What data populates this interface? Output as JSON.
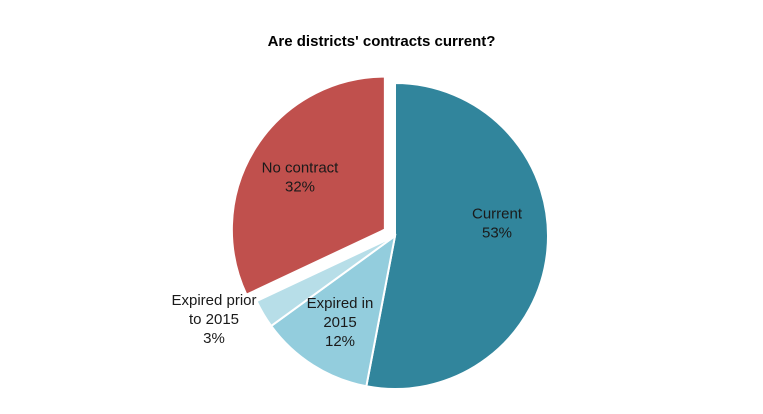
{
  "chart_data": {
    "type": "pie",
    "title": "Are districts' contracts current?",
    "slices": [
      {
        "label_lines": [
          "Current",
          "53%"
        ],
        "name": "Current",
        "value": 53,
        "color": "#31859C"
      },
      {
        "label_lines": [
          "Expired in",
          "2015",
          "12%"
        ],
        "name": "Expired in 2015",
        "value": 12,
        "color": "#93CDDD"
      },
      {
        "label_lines": [
          "Expired prior",
          "to 2015",
          "3%"
        ],
        "name": "Expired prior to 2015",
        "value": 3,
        "color": "#B7DEE8"
      },
      {
        "label_lines": [
          "No contract",
          "32%"
        ],
        "name": "No contract",
        "value": 32,
        "color": "#C0504D"
      }
    ],
    "start_angle": "12 o'clock, clockwise",
    "legend": "none",
    "exploded": [
      "No contract"
    ]
  }
}
